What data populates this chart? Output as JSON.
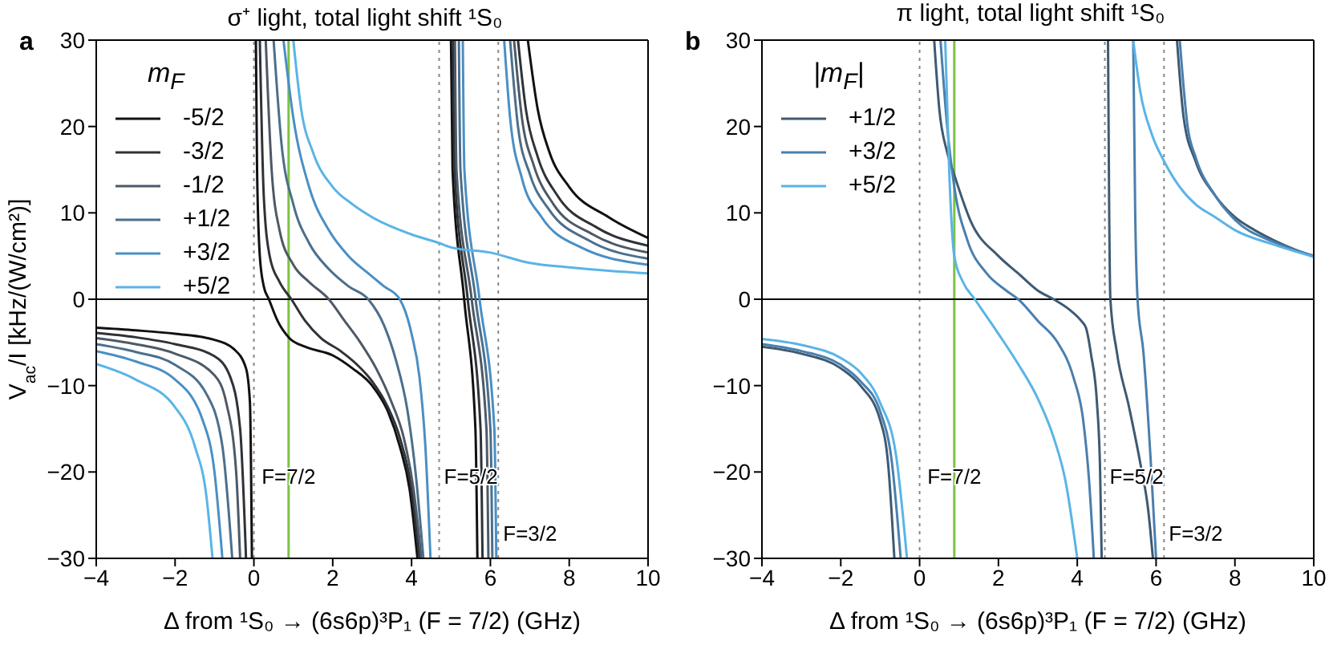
{
  "chart_data": [
    {
      "type": "line",
      "title": "σ⁺ light, total light shift ¹S₀",
      "xlabel": "Δ from ¹S₀ → (6s6p)³P₁ (F = 7/2) (GHz)",
      "ylabel": "V$_{ac}$/I [kHz/(W/cm²)]",
      "legend_title": "m$_{F}$",
      "legend": "top left",
      "xlim": [
        -4,
        10
      ],
      "ylim": [
        -30,
        30
      ],
      "xticks": [
        -4,
        -2,
        0,
        2,
        4,
        6,
        8,
        10
      ],
      "yticks": [
        -30,
        -20,
        -10,
        0,
        10,
        20,
        30
      ],
      "series": [
        {
          "name": "-5/2",
          "color": "#111111",
          "x": [
            -4,
            -3,
            -2,
            -1,
            -0.5,
            -0.2,
            -0.1,
            -0.05,
            0,
            0.05,
            0.08,
            0.15,
            0.25,
            0.38,
            0.6,
            0.9,
            1.3,
            2,
            2.5,
            3,
            3.4,
            3.7,
            3.95,
            4.15,
            4.5,
            5.0,
            5.04,
            5.335,
            5.62,
            5.67,
            6.3,
            6.95,
            7.2,
            7.5,
            8,
            9,
            10
          ],
          "values": [
            -3.3,
            -3.6,
            -4.0,
            -4.7,
            -5.8,
            -8,
            -12,
            -30,
            null,
            30,
            15,
            5,
            1.5,
            0,
            -2.5,
            -4.5,
            -5.5,
            -6.5,
            -8,
            -10,
            -13,
            -17,
            -22,
            -30,
            null,
            30,
            15,
            0,
            -15,
            -30,
            null,
            30,
            22,
            17,
            13,
            9.5,
            7.1
          ]
        },
        {
          "name": "-3/2",
          "color": "#2e3338",
          "x": [
            -4,
            -3,
            -2,
            -1,
            -0.6,
            -0.35,
            -0.2,
            -0.02,
            0.15,
            0.25,
            0.4,
            0.65,
            0.95,
            1.3,
            1.7,
            2.2,
            2.6,
            3,
            3.4,
            3.7,
            4.0,
            4.2,
            4.6,
            5.05,
            5.09,
            5.425,
            5.75,
            5.8,
            6.25,
            6.7,
            6.9,
            7.2,
            7.7,
            8.7,
            10
          ],
          "values": [
            -3.9,
            -4.4,
            -5.2,
            -6.6,
            -9,
            -15,
            -30,
            null,
            30,
            12,
            5,
            2,
            0,
            -2.5,
            -4.5,
            -6,
            -7.5,
            -9.5,
            -12.5,
            -16,
            -22,
            -30,
            null,
            30,
            15,
            0,
            -15,
            -30,
            null,
            30,
            22,
            16.5,
            12,
            8.3,
            6.2
          ]
        },
        {
          "name": "-1/2",
          "color": "#4d5966",
          "x": [
            -4,
            -3,
            -2,
            -1,
            -0.7,
            -0.45,
            -0.35,
            0,
            0.3,
            0.45,
            0.65,
            1.0,
            1.4,
            1.9,
            2.3,
            2.7,
            3.1,
            3.5,
            3.8,
            4.05,
            4.25,
            4.65,
            5.1,
            5.14,
            5.525,
            5.9,
            5.95,
            6.3,
            6.6,
            6.8,
            7.1,
            7.6,
            8.6,
            10
          ],
          "values": [
            -4.5,
            -5.2,
            -6.3,
            -8.8,
            -12,
            -20,
            -30,
            null,
            30,
            15,
            8,
            4,
            2,
            0,
            -2.5,
            -5,
            -8,
            -12,
            -16,
            -22,
            -30,
            null,
            30,
            15,
            0,
            -15,
            -30,
            null,
            30,
            21,
            15.5,
            11,
            7.5,
            5.4
          ]
        },
        {
          "name": "+1/2",
          "color": "#4b6f8c",
          "x": [
            -4,
            -3,
            -2,
            -1.2,
            -0.8,
            -0.55,
            0,
            0.5,
            0.7,
            1.0,
            1.4,
            1.9,
            2.4,
            2.9,
            3.3,
            3.6,
            3.9,
            4.1,
            4.3,
            4.7,
            5.2,
            5.24,
            5.625,
            6.0,
            6.05,
            6.3,
            6.5,
            6.7,
            7,
            7.5,
            8.5,
            10
          ],
          "values": [
            -5.2,
            -6.1,
            -7.6,
            -11,
            -17,
            -30,
            null,
            30,
            18,
            11,
            6.5,
            3.5,
            1.5,
            0,
            -3,
            -7,
            -13,
            -20,
            -30,
            null,
            30,
            15,
            0,
            -15,
            -30,
            null,
            30,
            20,
            14.5,
            10.3,
            6.8,
            4.7
          ]
        },
        {
          "name": "+3/2",
          "color": "#4a8fc4",
          "x": [
            -4,
            -3,
            -2,
            -1.3,
            -1,
            -0.8,
            0,
            0.75,
            1.0,
            1.4,
            1.9,
            2.4,
            2.9,
            3.3,
            3.7,
            4.0,
            4.2,
            4.35,
            4.48,
            4.75,
            5.3,
            5.34,
            5.725,
            6.1,
            6.15,
            6.25,
            6.35,
            6.5,
            6.8,
            7.3,
            8.3,
            10
          ],
          "values": [
            -6,
            -7.2,
            -9.3,
            -14,
            -20,
            -30,
            null,
            30,
            21,
            13,
            8,
            5,
            3,
            1.5,
            0,
            -4,
            -9,
            -17,
            -30,
            null,
            30,
            15,
            0,
            -15,
            -30,
            null,
            30,
            21,
            14,
            9.5,
            6,
            4.0
          ]
        },
        {
          "name": "+5/2",
          "color": "#5ab4e6",
          "x": [
            -4,
            -3,
            -2,
            -1.5,
            -1.2,
            -1.05,
            0,
            1.0,
            1.2,
            1.5,
            2,
            2.5,
            3,
            4,
            4.7,
            5,
            6,
            7,
            8,
            9,
            10
          ],
          "values": [
            -7.5,
            -9.3,
            -12.5,
            -17,
            -23,
            -30,
            null,
            30,
            22,
            17,
            13,
            11,
            9.5,
            7.5,
            6.5,
            6,
            5.4,
            4.2,
            3.7,
            3.3,
            3.0
          ]
        }
      ],
      "ref_lines": [
        {
          "axis": "x",
          "value": 0,
          "color": "#888888",
          "line_style": "dotted"
        },
        {
          "axis": "x",
          "value": 0.88,
          "color": "#7cc242",
          "line_style": "solid"
        },
        {
          "axis": "x",
          "value": 4.7,
          "color": "#888888",
          "line_style": "dotted"
        },
        {
          "axis": "x",
          "value": 6.2,
          "color": "#888888",
          "line_style": "dotted"
        },
        {
          "axis": "y",
          "value": 0,
          "color": "#000000",
          "line_style": "solid"
        }
      ],
      "annotations": [
        "a",
        "F=7/2",
        "F=5/2",
        "F=3/2"
      ]
    },
    {
      "type": "line",
      "title": "π light, total light shift ¹S₀",
      "xlabel": "Δ from ¹S₀ → (6s6p)³P₁ (F = 7/2) (GHz)",
      "legend_title": "|m$_{F}$|",
      "legend": "top left",
      "xlim": [
        -4,
        10
      ],
      "ylim": [
        -30,
        30
      ],
      "xticks": [
        -4,
        -2,
        0,
        2,
        4,
        6,
        8,
        10
      ],
      "yticks": [
        -30,
        -20,
        -10,
        0,
        10,
        20,
        30
      ],
      "series": [
        {
          "name": "+1/2",
          "color": "#3d5a73",
          "x": [
            -4,
            -3,
            -2,
            -1.5,
            -1,
            -0.8,
            -0.64,
            0,
            0.37,
            0.5,
            0.7,
            0.88,
            1.3,
            2,
            2.5,
            3,
            3.4,
            3.8,
            4.1,
            4.22,
            4.35,
            4.5,
            4.58,
            4.62,
            4.7,
            4.78,
            4.81,
            4.84,
            5.0,
            5.31,
            5.6,
            5.8,
            5.92,
            6.2,
            6.53,
            6.7,
            7,
            7.5,
            8,
            8.5,
            9,
            9.5,
            10
          ],
          "values": [
            -5.5,
            -6.3,
            -8,
            -10,
            -14,
            -19,
            -30,
            null,
            30,
            22,
            17,
            14.4,
            9,
            5,
            3,
            1,
            0,
            -1.2,
            -2.5,
            -3.3,
            -6.4,
            -12,
            -20,
            -30,
            null,
            30,
            10,
            0,
            -6,
            -12.4,
            -19,
            -24.4,
            -30,
            null,
            30,
            21,
            16,
            12,
            9.5,
            8,
            6.8,
            5.8,
            5.0
          ]
        },
        {
          "name": "+3/2",
          "color": "#4a7fae",
          "x": [
            -4,
            -3,
            -2,
            -1.5,
            -1,
            -0.7,
            -0.48,
            0,
            0.53,
            0.7,
            0.88,
            1.2,
            1.7,
            2.2,
            2.5,
            3,
            3.5,
            3.9,
            4.15,
            4.3,
            4.42,
            4.9,
            5.42,
            5.47,
            5.53,
            5.68,
            5.86,
            6.0,
            6.3,
            6.6,
            6.8,
            7,
            7.5,
            8,
            9,
            10
          ],
          "values": [
            -5.2,
            -6,
            -7.6,
            -9.5,
            -13,
            -19,
            -30,
            null,
            30,
            20,
            13,
            7,
            3,
            1,
            0,
            -2.5,
            -5,
            -9,
            -14,
            -21,
            -30,
            null,
            30,
            10,
            0,
            -6.2,
            -18.4,
            -30,
            null,
            30,
            20,
            16.5,
            12,
            9.2,
            6.6,
            5.0
          ]
        },
        {
          "name": "+5/2",
          "color": "#5ab4e6",
          "x": [
            -4,
            -3,
            -2,
            -1.5,
            -1,
            -0.6,
            -0.32,
            0.1,
            0.65,
            0.75,
            0.88,
            1.1,
            1.4,
            2,
            2.5,
            3,
            3.4,
            3.7,
            4.0,
            4.7,
            5.42,
            5.6,
            5.9,
            6.2,
            6.6,
            7,
            7.5,
            8,
            9,
            10
          ],
          "values": [
            -4.6,
            -5.3,
            -6.8,
            -8.5,
            -12,
            -18,
            -30,
            null,
            30,
            15,
            5,
            2,
            0,
            -4,
            -7.5,
            -11.5,
            -16,
            -21,
            -30,
            null,
            30,
            24,
            19,
            16,
            13,
            11,
            9.5,
            8,
            6.3,
            4.9
          ]
        }
      ],
      "ref_lines": [
        {
          "axis": "x",
          "value": 0,
          "color": "#888888",
          "line_style": "dotted"
        },
        {
          "axis": "x",
          "value": 0.88,
          "color": "#7cc242",
          "line_style": "solid"
        },
        {
          "axis": "x",
          "value": 4.7,
          "color": "#888888",
          "line_style": "dotted"
        },
        {
          "axis": "x",
          "value": 6.2,
          "color": "#888888",
          "line_style": "dotted"
        },
        {
          "axis": "y",
          "value": 0,
          "color": "#000000",
          "line_style": "solid"
        }
      ],
      "annotations": [
        "b",
        "F=7/2",
        "F=5/2",
        "F=3/2"
      ]
    }
  ]
}
